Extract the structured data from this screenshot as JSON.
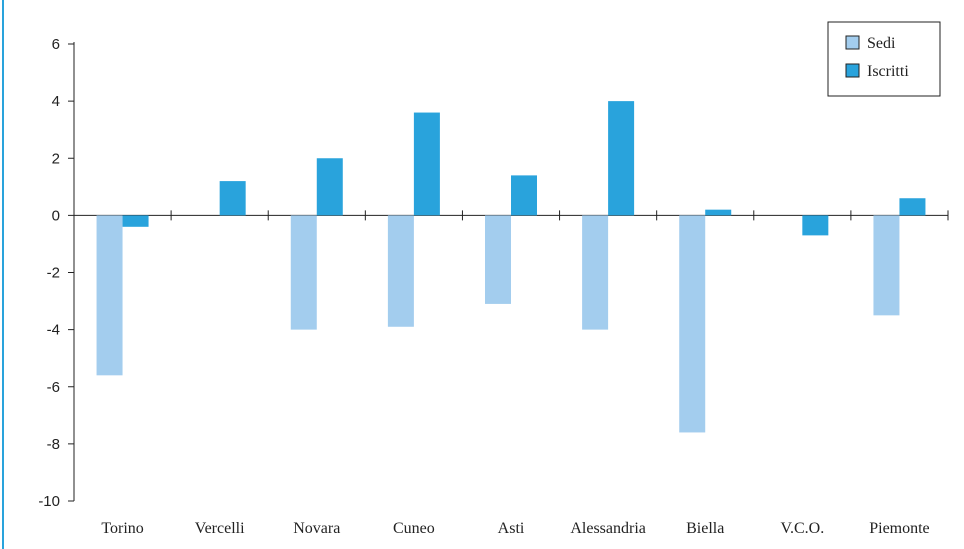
{
  "chart_data": {
    "type": "bar",
    "categories": [
      "Torino",
      "Vercelli",
      "Novara",
      "Cuneo",
      "Asti",
      "Alessandria",
      "Biella",
      "V.C.O.",
      "Piemonte"
    ],
    "series": [
      {
        "name": "Sedi",
        "color": "#a3cdee",
        "values": [
          -5.6,
          0,
          -4.0,
          -3.9,
          -3.1,
          -4.0,
          -7.6,
          0,
          -3.5
        ]
      },
      {
        "name": "Iscritti",
        "color": "#29a3dc",
        "values": [
          -0.4,
          1.2,
          2.0,
          3.6,
          1.4,
          4.0,
          0.2,
          -0.7,
          0.6
        ]
      }
    ],
    "ylim": [
      -10,
      6
    ],
    "yticks": [
      "6",
      "4",
      "2",
      "0",
      "-2",
      "-4",
      "-6",
      "-8",
      "-10"
    ],
    "ytick_values": [
      6,
      4,
      2,
      0,
      -2,
      -4,
      -6,
      -8,
      -10
    ],
    "legend_position": "top-right",
    "grid": false
  }
}
